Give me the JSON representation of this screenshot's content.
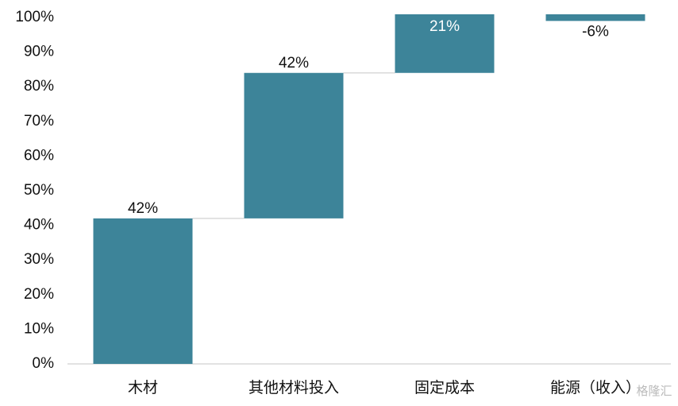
{
  "chart_data": {
    "type": "waterfall",
    "categories": [
      "木材",
      "其他材料投入",
      "固定成本",
      "能源（收入）"
    ],
    "values": [
      42,
      42,
      21,
      -6
    ],
    "value_labels": [
      "42%",
      "42%",
      "21%",
      "-6%"
    ],
    "color": "#3d8499",
    "ylim": [
      0,
      100
    ],
    "yticks": [
      {
        "value": 0,
        "label": "0%"
      },
      {
        "value": 10,
        "label": "10%"
      },
      {
        "value": 20,
        "label": "20%"
      },
      {
        "value": 30,
        "label": "30%"
      },
      {
        "value": 40,
        "label": "40%"
      },
      {
        "value": 50,
        "label": "50%"
      },
      {
        "value": 60,
        "label": "60%"
      },
      {
        "value": 70,
        "label": "70%"
      },
      {
        "value": 80,
        "label": "80%"
      },
      {
        "value": 90,
        "label": "90%"
      },
      {
        "value": 100,
        "label": "100%"
      }
    ],
    "grid": false
  },
  "watermark": "格隆汇"
}
